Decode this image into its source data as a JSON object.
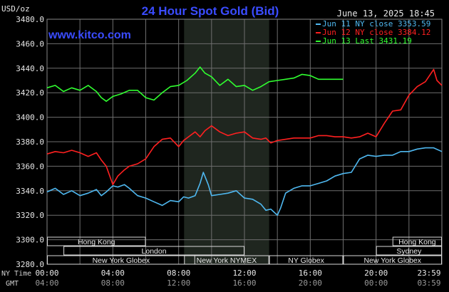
{
  "header": {
    "unit": "USD/oz",
    "title": "24 Hour Spot Gold (Bid)",
    "site": "www.kitco.com",
    "date": "June 13, 2025 18:45"
  },
  "colors": {
    "background": "#000000",
    "title": "#3a4cff",
    "site": "#3a4cff",
    "grid": "#6e6e6e",
    "shade": "#1f261f",
    "series_jun11": "#4fb8f0",
    "series_jun12": "#ff2020",
    "series_jun13": "#30ff30",
    "session_box": "#d8d8d8"
  },
  "sessions": [
    {
      "label": "Hong Kong",
      "start": 0,
      "end": 6
    },
    {
      "label": "London",
      "start": 1,
      "end": 12
    },
    {
      "label": "New York Globex",
      "start": 0,
      "end": 9
    },
    {
      "label": "New York NYMEX",
      "start": 8.33,
      "end": 13.5
    },
    {
      "label": "NY Globex",
      "start": 13.5,
      "end": 18
    },
    {
      "label": "Hong Kong",
      "start": 21,
      "end": 24
    },
    {
      "label": "Sydney",
      "start": 20,
      "end": 24
    },
    {
      "label": "New York Globex",
      "start": 18,
      "end": 24
    }
  ],
  "timezones": {
    "row1": "NY Time",
    "row2": "GMT"
  },
  "chart_data": {
    "type": "line",
    "ylim": [
      3280,
      3480
    ],
    "yticks": [
      3280,
      3300,
      3320,
      3340,
      3360,
      3380,
      3400,
      3420,
      3440,
      3460,
      3480
    ],
    "ytick_labels": [
      "3280.0",
      "3300.0",
      "3320.0",
      "3340.0",
      "3360.0",
      "3380.0",
      "3400.0",
      "3420.0",
      "3440.0",
      "3460.0",
      "3480.0"
    ],
    "xlim": [
      0,
      24
    ],
    "xticks": [
      0,
      4,
      8,
      12,
      16,
      20,
      23.983
    ],
    "xtick_labels_ny": [
      "00:00",
      "04:00",
      "08:00",
      "12:00",
      "16:00",
      "20:00",
      "23:59"
    ],
    "xtick_labels_gmt": [
      "04:00",
      "08:00",
      "12:00",
      "16:00",
      "20:00",
      "00:00",
      "03:59"
    ],
    "shaded_region": [
      8.33,
      13.5
    ],
    "legend_position": "top-right",
    "series": [
      {
        "name": "Jun 11 NY close 3353.59",
        "x": [
          0,
          0.5,
          1,
          1.5,
          2,
          2.5,
          3,
          3.3,
          3.6,
          4,
          4.3,
          4.7,
          5,
          5.5,
          6,
          6.5,
          7,
          7.5,
          8,
          8.3,
          8.6,
          9,
          9.3,
          9.5,
          9.8,
          10,
          10.5,
          11,
          11.5,
          12,
          12.5,
          13,
          13.3,
          13.6,
          14,
          14.2,
          14.5,
          15,
          15.5,
          16,
          16.5,
          17,
          17.5,
          18,
          18.5,
          19,
          19.5,
          20,
          20.5,
          21,
          21.5,
          22,
          22.5,
          23,
          23.5,
          24
        ],
        "y": [
          3339,
          3342,
          3337,
          3340,
          3336,
          3338,
          3341,
          3336,
          3339,
          3344,
          3343,
          3345,
          3342,
          3336,
          3334,
          3331,
          3328,
          3332,
          3331,
          3335,
          3334,
          3336,
          3346,
          3355,
          3345,
          3336,
          3337,
          3338,
          3340,
          3334,
          3333,
          3329,
          3324,
          3325,
          3320,
          3326,
          3338,
          3342,
          3344,
          3344,
          3346,
          3348,
          3352,
          3354,
          3355,
          3366,
          3369,
          3368,
          3369,
          3369,
          3372,
          3372,
          3374,
          3375,
          3375,
          3372
        ]
      },
      {
        "name": "Jun 12 NY close 3384.12",
        "x": [
          0,
          0.5,
          1,
          1.5,
          2,
          2.5,
          3,
          3.3,
          3.6,
          4,
          4.3,
          4.7,
          5,
          5.5,
          6,
          6.5,
          7,
          7.5,
          8,
          8.3,
          8.6,
          9,
          9.3,
          9.6,
          10,
          10.5,
          11,
          11.5,
          12,
          12.5,
          13,
          13.3,
          13.6,
          14,
          14.5,
          15,
          15.5,
          16,
          16.5,
          17,
          17.5,
          18,
          18.5,
          19,
          19.5,
          20,
          20.5,
          21,
          21.5,
          22,
          22.5,
          23,
          23.3,
          23.5,
          23.7,
          24
        ],
        "y": [
          3370,
          3372,
          3371,
          3373,
          3371,
          3368,
          3371,
          3365,
          3360,
          3345,
          3352,
          3357,
          3360,
          3362,
          3366,
          3376,
          3382,
          3383,
          3376,
          3381,
          3384,
          3388,
          3384,
          3389,
          3393,
          3388,
          3385,
          3387,
          3388,
          3383,
          3382,
          3383,
          3379,
          3381,
          3382,
          3383,
          3383,
          3383,
          3385,
          3385,
          3384,
          3384,
          3383,
          3384,
          3387,
          3384,
          3395,
          3405,
          3406,
          3418,
          3425,
          3429,
          3435,
          3439,
          3430,
          3426
        ]
      },
      {
        "name": "Jun 13 Last 3431.19",
        "x": [
          0,
          0.5,
          1,
          1.5,
          2,
          2.5,
          3,
          3.3,
          3.6,
          4,
          4.5,
          5,
          5.5,
          6,
          6.5,
          7,
          7.5,
          8,
          8.5,
          9,
          9.3,
          9.6,
          10,
          10.5,
          11,
          11.5,
          12,
          12.5,
          13,
          13.5,
          14,
          14.5,
          15,
          15.5,
          16,
          16.5,
          17,
          17.5,
          18
        ],
        "y": [
          3424,
          3426,
          3421,
          3424,
          3422,
          3426,
          3421,
          3416,
          3413,
          3417,
          3419,
          3422,
          3422,
          3416,
          3414,
          3420,
          3425,
          3426,
          3430,
          3436,
          3441,
          3436,
          3433,
          3426,
          3431,
          3425,
          3426,
          3422,
          3425,
          3429,
          3430,
          3431,
          3432,
          3435,
          3434,
          3431,
          3431,
          3431,
          3431
        ]
      }
    ]
  }
}
